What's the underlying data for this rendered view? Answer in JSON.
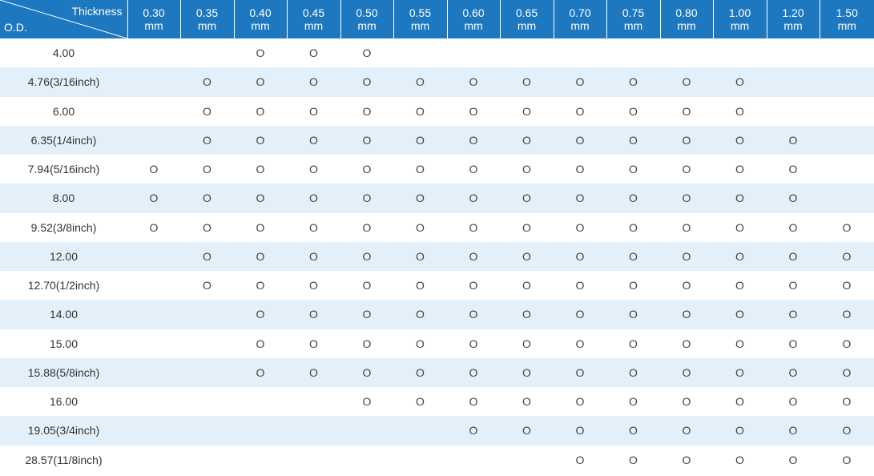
{
  "header": {
    "corner_top": "Thickness",
    "corner_bottom": "O.D.",
    "thickness": [
      {
        "value": "0.30",
        "unit": "mm"
      },
      {
        "value": "0.35",
        "unit": "mm"
      },
      {
        "value": "0.40",
        "unit": "mm"
      },
      {
        "value": "0.45",
        "unit": "mm"
      },
      {
        "value": "0.50",
        "unit": "mm"
      },
      {
        "value": "0.55",
        "unit": "mm"
      },
      {
        "value": "0.60",
        "unit": "mm"
      },
      {
        "value": "0.65",
        "unit": "mm"
      },
      {
        "value": "0.70",
        "unit": "mm"
      },
      {
        "value": "0.75",
        "unit": "mm"
      },
      {
        "value": "0.80",
        "unit": "mm"
      },
      {
        "value": "1.00",
        "unit": "mm"
      },
      {
        "value": "1.20",
        "unit": "mm"
      },
      {
        "value": "1.50",
        "unit": "mm"
      }
    ]
  },
  "rows": [
    {
      "od": "4.00",
      "cells": [
        "",
        "",
        "O",
        "O",
        "O",
        "",
        "",
        "",
        "",
        "",
        "",
        "",
        "",
        ""
      ]
    },
    {
      "od": "4.76(3/16inch)",
      "cells": [
        "",
        "O",
        "O",
        "O",
        "O",
        "O",
        "O",
        "O",
        "O",
        "O",
        "O",
        "O",
        "",
        ""
      ]
    },
    {
      "od": "6.00",
      "cells": [
        "",
        "O",
        "O",
        "O",
        "O",
        "O",
        "O",
        "O",
        "O",
        "O",
        "O",
        "O",
        "",
        ""
      ]
    },
    {
      "od": "6.35(1/4inch)",
      "cells": [
        "",
        "O",
        "O",
        "O",
        "O",
        "O",
        "O",
        "O",
        "O",
        "O",
        "O",
        "O",
        "O",
        ""
      ]
    },
    {
      "od": "7.94(5/16inch)",
      "cells": [
        "O",
        "O",
        "O",
        "O",
        "O",
        "O",
        "O",
        "O",
        "O",
        "O",
        "O",
        "O",
        "O",
        ""
      ]
    },
    {
      "od": "8.00",
      "cells": [
        "O",
        "O",
        "O",
        "O",
        "O",
        "O",
        "O",
        "O",
        "O",
        "O",
        "O",
        "O",
        "O",
        ""
      ]
    },
    {
      "od": "9.52(3/8inch)",
      "cells": [
        "O",
        "O",
        "O",
        "O",
        "O",
        "O",
        "O",
        "O",
        "O",
        "O",
        "O",
        "O",
        "O",
        "O"
      ]
    },
    {
      "od": "12.00",
      "cells": [
        "",
        "O",
        "O",
        "O",
        "O",
        "O",
        "O",
        "O",
        "O",
        "O",
        "O",
        "O",
        "O",
        "O"
      ]
    },
    {
      "od": "12.70(1/2inch)",
      "cells": [
        "",
        "O",
        "O",
        "O",
        "O",
        "O",
        "O",
        "O",
        "O",
        "O",
        "O",
        "O",
        "O",
        "O"
      ]
    },
    {
      "od": "14.00",
      "cells": [
        "",
        "",
        "O",
        "O",
        "O",
        "O",
        "O",
        "O",
        "O",
        "O",
        "O",
        "O",
        "O",
        "O"
      ]
    },
    {
      "od": "15.00",
      "cells": [
        "",
        "",
        "O",
        "O",
        "O",
        "O",
        "O",
        "O",
        "O",
        "O",
        "O",
        "O",
        "O",
        "O"
      ]
    },
    {
      "od": "15.88(5/8inch)",
      "cells": [
        "",
        "",
        "O",
        "O",
        "O",
        "O",
        "O",
        "O",
        "O",
        "O",
        "O",
        "O",
        "O",
        "O"
      ]
    },
    {
      "od": "16.00",
      "cells": [
        "",
        "",
        "",
        "",
        "O",
        "O",
        "O",
        "O",
        "O",
        "O",
        "O",
        "O",
        "O",
        "O"
      ]
    },
    {
      "od": "19.05(3/4inch)",
      "cells": [
        "",
        "",
        "",
        "",
        "",
        "",
        "O",
        "O",
        "O",
        "O",
        "O",
        "O",
        "O",
        "O"
      ]
    },
    {
      "od": "28.57(11/8inch)",
      "cells": [
        "",
        "",
        "",
        "",
        "",
        "",
        "",
        "",
        "O",
        "O",
        "O",
        "O",
        "O",
        "O"
      ]
    }
  ]
}
